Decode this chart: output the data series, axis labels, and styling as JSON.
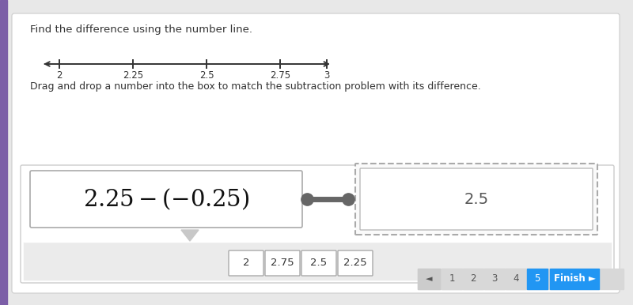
{
  "bg_color": "#e8e8e8",
  "panel_color": "#ffffff",
  "title_text": "Find the difference using the number line.",
  "subtitle_text": "Drag and drop a number into the box to match the subtraction problem with its difference.",
  "number_line": {
    "ticks": [
      2,
      2.25,
      2.5,
      2.75,
      3
    ],
    "labels": [
      "2",
      "2.25",
      "2.5",
      "2.75",
      "3"
    ]
  },
  "answer_text": "2.5",
  "drag_options": [
    "2",
    "2.75",
    "2.5",
    "2.25"
  ],
  "nav_pages": [
    "1",
    "2",
    "3",
    "4",
    "5"
  ],
  "active_page": 4,
  "left_border_color": "#7b5ea7",
  "finish_btn_color": "#2196f3",
  "nav_inactive_color": "#d8d8d8",
  "interact_border_color": "#cccccc",
  "gray_area_color": "#ebebeb",
  "eq_box_border": "#aaaaaa",
  "dashed_box_border": "#aaaaaa",
  "connector_color": "#666666",
  "triangle_color": "#c8c8c8"
}
